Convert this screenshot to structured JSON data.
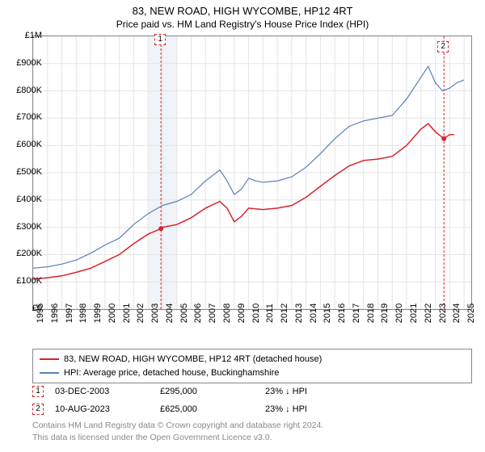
{
  "title": "83, NEW ROAD, HIGH WYCOMBE, HP12 4RT",
  "subtitle": "Price paid vs. HM Land Registry's House Price Index (HPI)",
  "chart": {
    "type": "line",
    "background_color": "#ffffff",
    "grid_color": "#e4e4e4",
    "border_color": "#888888",
    "highlight_band_color": "#f0f3f7",
    "highlight_band_start_year": 2003,
    "highlight_band_end_year": 2005,
    "x_axis": {
      "min": 1995,
      "max": 2025.5,
      "ticks": [
        1995,
        1996,
        1997,
        1998,
        1999,
        2000,
        2001,
        2002,
        2003,
        2004,
        2005,
        2006,
        2007,
        2008,
        2009,
        2010,
        2011,
        2012,
        2013,
        2014,
        2015,
        2016,
        2017,
        2018,
        2019,
        2020,
        2021,
        2022,
        2023,
        2024,
        2025
      ],
      "label_fontsize": 11
    },
    "y_axis": {
      "min": 0,
      "max": 1000000,
      "ticks": [
        0,
        100000,
        200000,
        300000,
        400000,
        500000,
        600000,
        700000,
        800000,
        900000,
        1000000
      ],
      "tick_labels": [
        "£0",
        "£100K",
        "£200K",
        "£300K",
        "£400K",
        "£500K",
        "£600K",
        "£700K",
        "£800K",
        "£900K",
        "£1M"
      ],
      "label_fontsize": 11
    },
    "series": [
      {
        "name": "property",
        "label": "83, NEW ROAD, HIGH WYCOMBE, HP12 4RT (detached house)",
        "color": "#d6232a",
        "line_width": 1.5,
        "data": [
          [
            1995,
            110000
          ],
          [
            1996,
            115000
          ],
          [
            1997,
            122000
          ],
          [
            1998,
            135000
          ],
          [
            1999,
            150000
          ],
          [
            2000,
            175000
          ],
          [
            2001,
            200000
          ],
          [
            2002,
            240000
          ],
          [
            2003,
            275000
          ],
          [
            2003.9,
            295000
          ],
          [
            2004,
            300000
          ],
          [
            2005,
            310000
          ],
          [
            2006,
            335000
          ],
          [
            2007,
            370000
          ],
          [
            2008,
            395000
          ],
          [
            2008.5,
            370000
          ],
          [
            2009,
            320000
          ],
          [
            2009.5,
            340000
          ],
          [
            2010,
            370000
          ],
          [
            2011,
            365000
          ],
          [
            2012,
            370000
          ],
          [
            2013,
            380000
          ],
          [
            2014,
            410000
          ],
          [
            2015,
            450000
          ],
          [
            2016,
            490000
          ],
          [
            2017,
            525000
          ],
          [
            2018,
            545000
          ],
          [
            2019,
            550000
          ],
          [
            2020,
            560000
          ],
          [
            2021,
            600000
          ],
          [
            2022,
            660000
          ],
          [
            2022.5,
            680000
          ],
          [
            2023,
            650000
          ],
          [
            2023.6,
            625000
          ],
          [
            2024,
            640000
          ],
          [
            2024.3,
            640000
          ]
        ]
      },
      {
        "name": "hpi",
        "label": "HPI: Average price, detached house, Buckinghamshire",
        "color": "#5a7fb8",
        "line_width": 1.2,
        "data": [
          [
            1995,
            150000
          ],
          [
            1996,
            155000
          ],
          [
            1997,
            165000
          ],
          [
            1998,
            180000
          ],
          [
            1999,
            205000
          ],
          [
            2000,
            235000
          ],
          [
            2001,
            260000
          ],
          [
            2002,
            310000
          ],
          [
            2003,
            350000
          ],
          [
            2004,
            380000
          ],
          [
            2005,
            395000
          ],
          [
            2006,
            420000
          ],
          [
            2007,
            470000
          ],
          [
            2008,
            510000
          ],
          [
            2008.5,
            470000
          ],
          [
            2009,
            420000
          ],
          [
            2009.5,
            440000
          ],
          [
            2010,
            480000
          ],
          [
            2010.5,
            470000
          ],
          [
            2011,
            465000
          ],
          [
            2012,
            470000
          ],
          [
            2013,
            485000
          ],
          [
            2014,
            520000
          ],
          [
            2015,
            570000
          ],
          [
            2016,
            625000
          ],
          [
            2017,
            670000
          ],
          [
            2018,
            690000
          ],
          [
            2019,
            700000
          ],
          [
            2020,
            710000
          ],
          [
            2021,
            770000
          ],
          [
            2022,
            850000
          ],
          [
            2022.5,
            890000
          ],
          [
            2023,
            830000
          ],
          [
            2023.5,
            800000
          ],
          [
            2024,
            810000
          ],
          [
            2024.5,
            830000
          ],
          [
            2025,
            840000
          ]
        ]
      }
    ],
    "markers": [
      {
        "id": "1",
        "year": 2003.9,
        "y": 295000,
        "box_y_offset": -240
      },
      {
        "id": "2",
        "year": 2023.6,
        "y": 625000,
        "box_y_offset": -120
      }
    ],
    "marker_point_style": {
      "type": "circle",
      "radius": 3,
      "fill": "#d6232a"
    }
  },
  "legend": {
    "rows": [
      {
        "color": "#d6232a",
        "text": "83, NEW ROAD, HIGH WYCOMBE, HP12 4RT (detached house)"
      },
      {
        "color": "#5a7fb8",
        "text": "HPI: Average price, detached house, Buckinghamshire"
      }
    ]
  },
  "sales": [
    {
      "marker": "1",
      "date": "03-DEC-2003",
      "price": "£295,000",
      "delta": "23%",
      "direction": "↓",
      "vs": "HPI"
    },
    {
      "marker": "2",
      "date": "10-AUG-2023",
      "price": "£625,000",
      "delta": "23%",
      "direction": "↓",
      "vs": "HPI"
    }
  ],
  "footer": {
    "line1": "Contains HM Land Registry data © Crown copyright and database right 2024.",
    "line2": "This data is licensed under the Open Government Licence v3.0."
  }
}
